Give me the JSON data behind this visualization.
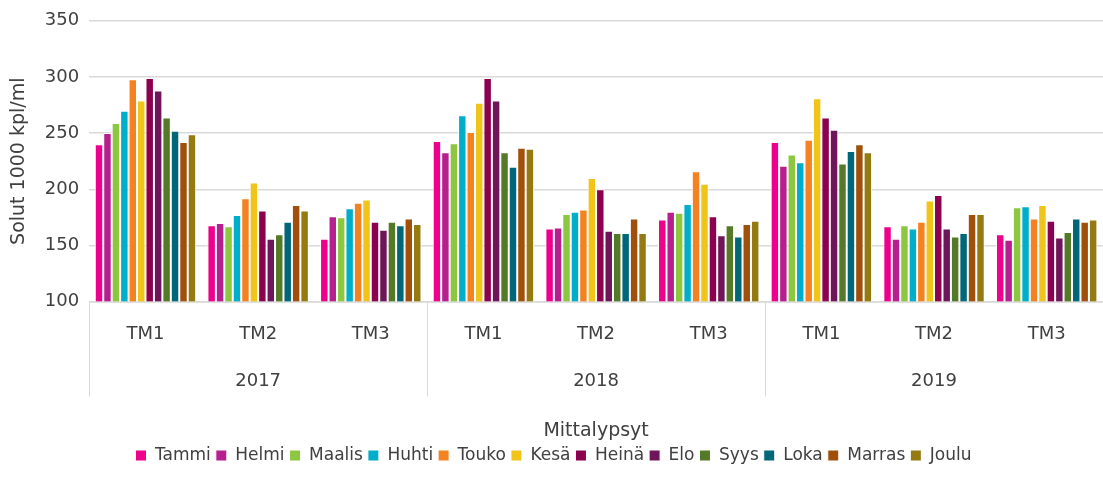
{
  "chart_data": {
    "type": "bar",
    "xlabel": "Mittalypsyt",
    "ylabel": "Solut 1000 kpl/ml",
    "categories": [
      "TM1",
      "TM2",
      "TM3",
      "TM1",
      "TM2",
      "TM3",
      "TM1",
      "TM2",
      "TM3"
    ],
    "annotations": [
      "2017",
      "2018",
      "2019"
    ],
    "ylim": [
      100,
      350
    ],
    "yticks": [
      100,
      150,
      200,
      250,
      300,
      350
    ],
    "grid": "y",
    "legend": "bottom",
    "series": [
      {
        "name": "Tammi",
        "color": "#ec008c",
        "values": [
          240,
          168,
          156,
          243,
          165,
          173,
          242,
          167,
          160
        ]
      },
      {
        "name": "Helmi",
        "color": "#b5208e",
        "values": [
          250,
          170,
          176,
          233,
          166,
          180,
          221,
          156,
          155
        ]
      },
      {
        "name": "Maalis",
        "color": "#8dc63f",
        "values": [
          259,
          167,
          175,
          241,
          178,
          179,
          231,
          168,
          184
        ]
      },
      {
        "name": "Huhti",
        "color": "#00aecb",
        "values": [
          270,
          177,
          183,
          266,
          180,
          187,
          224,
          165,
          185
        ]
      },
      {
        "name": "Touko",
        "color": "#f58220",
        "values": [
          298,
          192,
          188,
          251,
          182,
          216,
          244,
          171,
          174
        ]
      },
      {
        "name": "Kesä",
        "color": "#f0c419",
        "values": [
          279,
          206,
          191,
          277,
          210,
          205,
          281,
          190,
          186
        ]
      },
      {
        "name": "Heinä",
        "color": "#8c0050",
        "values": [
          299,
          181,
          171,
          299,
          200,
          176,
          264,
          195,
          172
        ]
      },
      {
        "name": "Elo",
        "color": "#6e1659",
        "values": [
          288,
          156,
          164,
          279,
          163,
          159,
          253,
          165,
          157
        ]
      },
      {
        "name": "Syys",
        "color": "#557a27",
        "values": [
          264,
          160,
          171,
          233,
          161,
          168,
          223,
          158,
          162
        ]
      },
      {
        "name": "Loka",
        "color": "#006679",
        "values": [
          252,
          171,
          168,
          220,
          161,
          158,
          234,
          161,
          174
        ]
      },
      {
        "name": "Marras",
        "color": "#a0500a",
        "values": [
          242,
          186,
          174,
          237,
          174,
          169,
          240,
          178,
          171
        ]
      },
      {
        "name": "Joulu",
        "color": "#947a10",
        "values": [
          249,
          181,
          169,
          236,
          161,
          172,
          233,
          178,
          173
        ]
      }
    ]
  }
}
